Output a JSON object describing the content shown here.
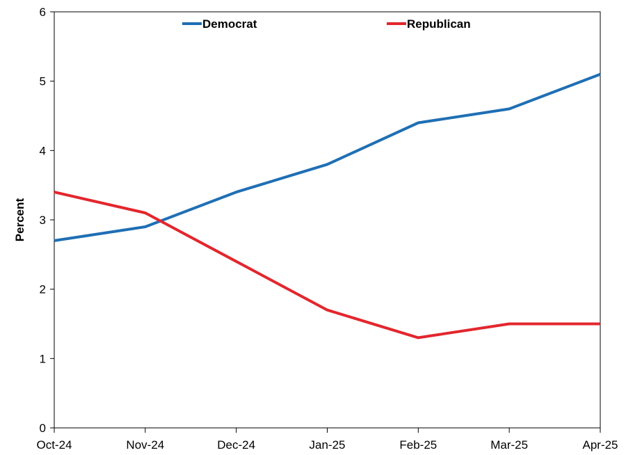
{
  "chart_data": {
    "type": "line",
    "title": "",
    "xlabel": "",
    "ylabel": "Percent",
    "categories": [
      "Oct-24",
      "Nov-24",
      "Dec-24",
      "Jan-25",
      "Feb-25",
      "Mar-25",
      "Apr-25"
    ],
    "ylim": [
      0,
      6
    ],
    "yticks": [
      0,
      1,
      2,
      3,
      4,
      5,
      6
    ],
    "grid": false,
    "legend_position": "top-center",
    "series": [
      {
        "name": "Democrat",
        "color": "#1f6fb4",
        "values": [
          2.7,
          2.9,
          3.4,
          3.8,
          4.4,
          4.6,
          5.1
        ]
      },
      {
        "name": "Republican",
        "color": "#e3262d",
        "values": [
          3.4,
          3.1,
          2.4,
          1.7,
          1.3,
          1.5,
          1.5
        ]
      }
    ]
  }
}
